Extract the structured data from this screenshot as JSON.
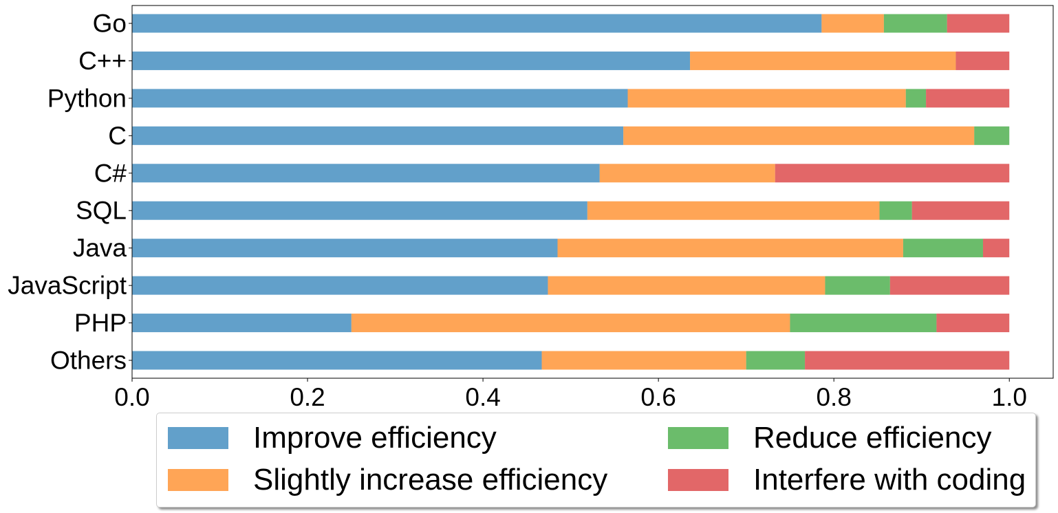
{
  "chart_data": {
    "type": "bar",
    "orientation": "horizontal",
    "stacked": true,
    "categories": [
      "Go",
      "C++",
      "Python",
      "C",
      "C#",
      "SQL",
      "Java",
      "JavaScript",
      "PHP",
      "Others"
    ],
    "series": [
      {
        "name": "Improve efficiency",
        "color": "#1f77b4",
        "values": [
          0.786,
          0.636,
          0.565,
          0.56,
          0.533,
          0.519,
          0.485,
          0.474,
          0.25,
          0.467
        ]
      },
      {
        "name": "Slightly increase efficiency",
        "color": "#ff7f0e",
        "values": [
          0.071,
          0.303,
          0.317,
          0.4,
          0.2,
          0.333,
          0.394,
          0.316,
          0.5,
          0.233
        ]
      },
      {
        "name": "Reduce efficiency",
        "color": "#2ca02c",
        "values": [
          0.072,
          0.0,
          0.023,
          0.04,
          0.0,
          0.037,
          0.091,
          0.074,
          0.167,
          0.067
        ]
      },
      {
        "name": "Interfere with coding",
        "color": "#d62728",
        "values": [
          0.071,
          0.061,
          0.095,
          0.0,
          0.267,
          0.111,
          0.03,
          0.136,
          0.083,
          0.233
        ]
      }
    ],
    "xlim": [
      0,
      1.05
    ],
    "xticks": [
      "0.0",
      "0.2",
      "0.4",
      "0.6",
      "0.8",
      "1.0"
    ],
    "bar_opacity": 0.7,
    "title": "",
    "xlabel": "",
    "ylabel": "",
    "grid": false,
    "legend_position": "below"
  }
}
